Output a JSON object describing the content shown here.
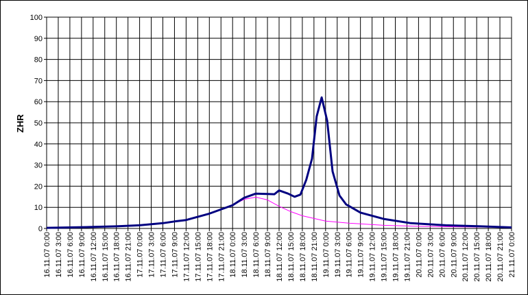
{
  "chart_data": {
    "type": "line",
    "y_label": "ZHR",
    "xlim": [
      0,
      120
    ],
    "ylim": [
      0,
      100
    ],
    "yticks": [
      0,
      10,
      20,
      30,
      40,
      50,
      60,
      70,
      80,
      90,
      100
    ],
    "xticks": [
      {
        "value": 0,
        "label": "16.11.07 0:00"
      },
      {
        "value": 3,
        "label": "16.11.07 3:00"
      },
      {
        "value": 6,
        "label": "16.11.07 6:00"
      },
      {
        "value": 9,
        "label": "16.11.07 9:00"
      },
      {
        "value": 12,
        "label": "16.11.07 12:00"
      },
      {
        "value": 15,
        "label": "16.11.07 15:00"
      },
      {
        "value": 18,
        "label": "16.11.07 18:00"
      },
      {
        "value": 21,
        "label": "16.11.07 21:00"
      },
      {
        "value": 24,
        "label": "17.11.07 0:00"
      },
      {
        "value": 27,
        "label": "17.11.07 3:00"
      },
      {
        "value": 30,
        "label": "17.11.07 6:00"
      },
      {
        "value": 33,
        "label": "17.11.07 9:00"
      },
      {
        "value": 36,
        "label": "17.11.07 12:00"
      },
      {
        "value": 39,
        "label": "17.11.07 15:00"
      },
      {
        "value": 42,
        "label": "17.11.07 18:00"
      },
      {
        "value": 45,
        "label": "17.11.07 21:00"
      },
      {
        "value": 48,
        "label": "18.11.07 0:00"
      },
      {
        "value": 51,
        "label": "18.11.07 3:00"
      },
      {
        "value": 54,
        "label": "18.11.07 6:00"
      },
      {
        "value": 57,
        "label": "18.11.07 9:00"
      },
      {
        "value": 60,
        "label": "18.11.07 12:00"
      },
      {
        "value": 63,
        "label": "18.11.07 15:00"
      },
      {
        "value": 66,
        "label": "18.11.07 18:00"
      },
      {
        "value": 69,
        "label": "18.11.07 21:00"
      },
      {
        "value": 72,
        "label": "19.11.07 0:00"
      },
      {
        "value": 75,
        "label": "19.11.07 3:00"
      },
      {
        "value": 78,
        "label": "19.11.07 6:00"
      },
      {
        "value": 81,
        "label": "19.11.07 9:00"
      },
      {
        "value": 84,
        "label": "19.11.07 12:00"
      },
      {
        "value": 87,
        "label": "19.11.07 15:00"
      },
      {
        "value": 90,
        "label": "19.11.07 18:00"
      },
      {
        "value": 93,
        "label": "19.11.07 21:00"
      },
      {
        "value": 96,
        "label": "20.11.07 0:00"
      },
      {
        "value": 99,
        "label": "20.11.07 3:00"
      },
      {
        "value": 102,
        "label": "20.11.07 6:00"
      },
      {
        "value": 105,
        "label": "20.11.07 9:00"
      },
      {
        "value": 108,
        "label": "20.11.07 12:00"
      },
      {
        "value": 111,
        "label": "20.11.07 15:00"
      },
      {
        "value": 114,
        "label": "20.11.07 18:00"
      },
      {
        "value": 117,
        "label": "20.11.07 21:00"
      },
      {
        "value": 120,
        "label": "21.11.07 0:00"
      }
    ],
    "grid": true,
    "series": [
      {
        "color": "#000080",
        "width": 3,
        "x": [
          0,
          6,
          12,
          18,
          24,
          30,
          33,
          36,
          42,
          48,
          51,
          54,
          57,
          58.8,
          60,
          62.3,
          64,
          65.5,
          67,
          68.5,
          69.7,
          71,
          72.4,
          73.8,
          75.6,
          77.3,
          81,
          87,
          94,
          103,
          112,
          120
        ],
        "values": [
          0.3,
          0.5,
          0.7,
          1.0,
          1.5,
          2.5,
          3.3,
          4.0,
          7.0,
          11.0,
          14.5,
          16.5,
          16.3,
          16.2,
          18.0,
          16.5,
          15.0,
          16.0,
          23.0,
          33.0,
          53.0,
          62.0,
          51.0,
          27.0,
          15.6,
          11.4,
          7.5,
          4.5,
          2.5,
          1.5,
          1.0,
          0.5
        ]
      },
      {
        "color": "#ff00ff",
        "width": 1,
        "x": [
          0,
          6,
          12,
          18,
          24,
          30,
          33,
          36,
          42,
          48,
          51,
          54,
          57,
          60,
          63,
          66,
          72,
          78,
          87,
          96,
          108,
          120
        ],
        "values": [
          0.3,
          0.5,
          0.7,
          1.0,
          1.5,
          2.5,
          3.3,
          4.0,
          7.0,
          11.0,
          13.8,
          14.8,
          13.5,
          10.5,
          8.0,
          6.0,
          3.5,
          2.5,
          1.5,
          1.0,
          0.7,
          0.5
        ]
      }
    ]
  }
}
